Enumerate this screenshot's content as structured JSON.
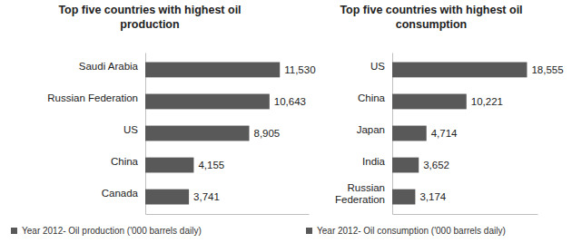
{
  "chart_data": [
    {
      "type": "bar",
      "orientation": "horizontal",
      "title": "Top five countries with highest oil production",
      "categories": [
        "Saudi Arabia",
        "Russian Federation",
        "US",
        "China",
        "Canada"
      ],
      "series": [
        {
          "name": "Year 2012- Oil production ('000 barrels daily)",
          "color": "#595959",
          "values": [
            11530,
            10643,
            8905,
            4155,
            3741
          ],
          "value_labels": [
            "11,530",
            "10,643",
            "8,905",
            "4,155",
            "3,741"
          ]
        }
      ],
      "xlim": [
        0,
        14000
      ],
      "xticks": [],
      "grid": false,
      "data_labels": true,
      "tick_labels": "y",
      "legend": "bottom"
    },
    {
      "type": "bar",
      "orientation": "horizontal",
      "title": "Top five countries with highest oil consumption",
      "categories": [
        "US",
        "China",
        "Japan",
        "India",
        "Russian Federation"
      ],
      "series": [
        {
          "name": "Year 2012- Oil consumption ('000 barrels daily)",
          "color": "#595959",
          "values": [
            18555,
            10221,
            4714,
            3652,
            3174
          ],
          "value_labels": [
            "18,555",
            "10,221",
            "4,714",
            "3,652",
            "3,174"
          ]
        }
      ],
      "xlim": [
        0,
        20000
      ],
      "xticks": [],
      "grid": false,
      "data_labels": true,
      "tick_labels": "y",
      "legend": "bottom"
    }
  ]
}
